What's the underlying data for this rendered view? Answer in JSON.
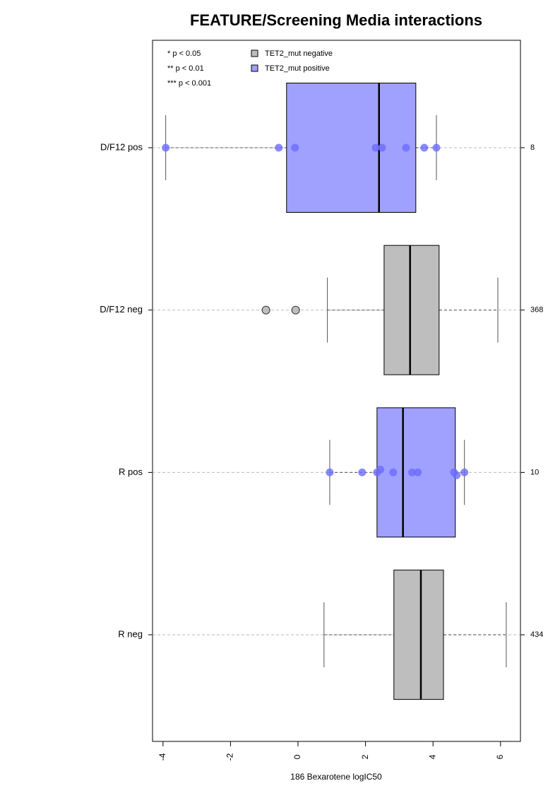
{
  "chart_data": {
    "type": "box",
    "title": "FEATURE/Screening Media interactions",
    "x_label": "186 Bexarotene logIC50",
    "notes": [
      "* p < 0.05",
      "** p < 0.01",
      "*** p < 0.001"
    ],
    "series": [
      {
        "name": "TET2_mut negative",
        "color": "#bebebe",
        "point_color": "#b0b0b0"
      },
      {
        "name": "TET2_mut positive",
        "color": "#a0a0ff",
        "point_color": "#6b6bff"
      }
    ],
    "categories": [
      "D/F12 pos",
      "D/F12 neg",
      "R pos",
      "R neg"
    ],
    "boxes": [
      {
        "series": 1,
        "whisker_low": -3.92,
        "q1": -0.34,
        "median": 2.4,
        "q3": 3.49,
        "whisker_high": 4.1,
        "n": 8,
        "points": [
          -3.92,
          -0.57,
          -0.09,
          2.3,
          2.49,
          3.2,
          3.74,
          4.1
        ]
      },
      {
        "series": 0,
        "whisker_low": 0.87,
        "q1": 2.55,
        "median": 3.32,
        "q3": 4.18,
        "whisker_high": 5.92,
        "n": 368,
        "points": [
          -0.95,
          -0.07
        ]
      },
      {
        "series": 1,
        "whisker_low": 0.94,
        "q1": 2.34,
        "median": 3.11,
        "q3": 4.66,
        "whisker_high": 4.93,
        "n": 10,
        "points": [
          0.94,
          1.9,
          2.34,
          2.44,
          2.82,
          3.38,
          3.55,
          4.62,
          4.7,
          4.93
        ]
      },
      {
        "series": 0,
        "whisker_low": 0.77,
        "q1": 2.84,
        "median": 3.64,
        "q3": 4.31,
        "whisker_high": 6.17,
        "n": 434,
        "points": []
      }
    ],
    "xlim": [
      -4.31,
      6.59
    ],
    "xticks": [
      -4,
      -2,
      0,
      2,
      4,
      6
    ],
    "grid": true
  }
}
